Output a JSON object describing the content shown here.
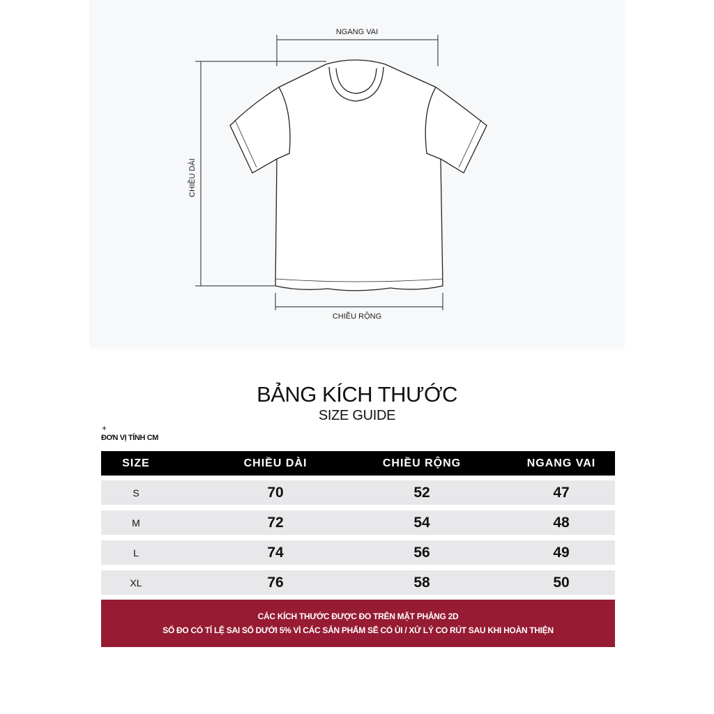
{
  "diagram": {
    "labels": {
      "shoulder": "NGANG VAI",
      "length": "CHIỀU DÀI",
      "width": "CHIỀU RỘNG"
    }
  },
  "title": "BẢNG KÍCH THƯỚC",
  "subtitle": "SIZE GUIDE",
  "plus": "+",
  "unit": "ĐƠN VỊ TÍNH CM",
  "table": {
    "headers": [
      "SIZE",
      "CHIỀU DÀI",
      "CHIỀU RỘNG",
      "NGANG VAI"
    ],
    "rows": [
      [
        "S",
        "70",
        "52",
        "47"
      ],
      [
        "M",
        "72",
        "54",
        "48"
      ],
      [
        "L",
        "74",
        "56",
        "49"
      ],
      [
        "XL",
        "76",
        "58",
        "50"
      ]
    ]
  },
  "note": {
    "line1": "CÁC KÍCH THƯỚC ĐƯỢC ĐO TRÊN MẶT PHẲNG 2D",
    "line2": "SỐ ĐO CÓ TỈ LỆ SAI SỐ DƯỚI 5% VÌ CÁC SẢN PHẨM SẼ CÓ ỦI / XỬ LÝ CO RÚT SAU KHI HOÀN THIỆN"
  },
  "colors": {
    "panel": "#f7f8fa",
    "header": "#000000",
    "row": "#e8e8ea",
    "note": "#961b33"
  }
}
